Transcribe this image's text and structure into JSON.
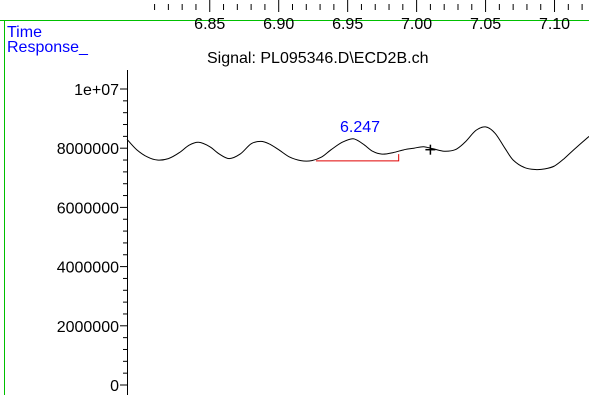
{
  "colors": {
    "frame": "#00c000",
    "axis_label": "#0000ff",
    "trace": "#000000",
    "baseline": "#e00000",
    "peak_label": "#0000ff"
  },
  "chart_data": {
    "type": "line",
    "title": "Signal: PL095346.D\\ECD2B.ch",
    "xlabel": "Time",
    "ylabel": "Response_",
    "xlim": [
      6.79,
      7.125
    ],
    "ylim": [
      0,
      10000000
    ],
    "x_ticks": [
      "6.85",
      "6.90",
      "6.95",
      "7.00",
      "7.05",
      "7.10"
    ],
    "y_ticks": [
      "0",
      "2000000",
      "4000000",
      "6000000",
      "8000000",
      "1e+07"
    ],
    "series": [
      {
        "x": [
          6.79,
          6.797,
          6.805,
          6.812,
          6.82,
          6.828,
          6.835,
          6.842,
          6.85,
          6.857,
          6.864,
          6.872,
          6.88,
          6.887,
          6.893,
          6.9,
          6.908,
          6.916,
          6.924,
          6.931,
          6.938,
          6.946,
          6.954,
          6.961,
          6.968,
          6.975,
          6.983,
          6.991,
          6.998,
          7.005,
          7.012,
          7.02,
          7.028,
          7.035,
          7.043,
          7.05,
          7.057,
          7.064,
          7.07,
          7.078,
          7.086,
          7.093,
          7.1,
          7.107,
          7.114,
          7.125
        ],
        "y": [
          8300000,
          7950000,
          7700000,
          7600000,
          7650000,
          7850000,
          8100000,
          8200000,
          8050000,
          7800000,
          7650000,
          7800000,
          8150000,
          8230000,
          8150000,
          7950000,
          7700000,
          7580000,
          7580000,
          7700000,
          7950000,
          8200000,
          8320000,
          8150000,
          7900000,
          7800000,
          7850000,
          7950000,
          8000000,
          8050000,
          7980000,
          7900000,
          7950000,
          8200000,
          8600000,
          8720000,
          8500000,
          8000000,
          7600000,
          7350000,
          7280000,
          7300000,
          7400000,
          7650000,
          7950000,
          8400000
        ]
      }
    ],
    "annotations": [
      {
        "text": "6.247",
        "x": 6.959,
        "y": 8550000,
        "baseline": {
          "x1": 6.927,
          "y1": 7570000,
          "x2": 6.987,
          "y2": 7570000,
          "x3": 6.987,
          "y3": 7800000
        }
      }
    ],
    "cursor": {
      "x": 7.01,
      "y": 7950000
    },
    "grid": false
  }
}
